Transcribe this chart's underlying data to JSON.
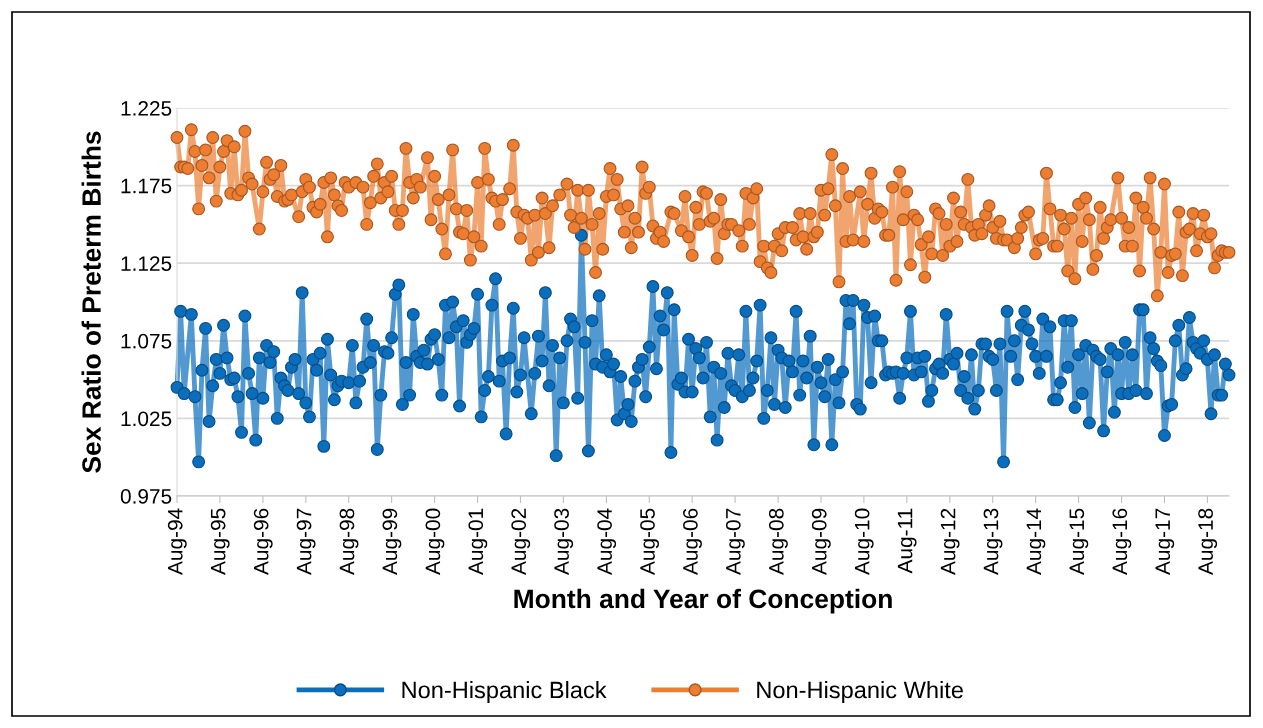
{
  "chart_data": {
    "type": "line",
    "xlabel": "Month and Year of Conception",
    "ylabel": "Sex Ratio of Preterm Births",
    "xlim": [
      "1994-08",
      "2019-02"
    ],
    "ylim": [
      0.975,
      1.225
    ],
    "yticks": [
      0.975,
      1.025,
      1.075,
      1.125,
      1.175,
      1.225
    ],
    "xticks": [
      {
        "value": "1994-08",
        "label": "Aug-94"
      },
      {
        "value": "1995-08",
        "label": "Aug-95"
      },
      {
        "value": "1996-08",
        "label": "Aug-96"
      },
      {
        "value": "1997-08",
        "label": "Aug-97"
      },
      {
        "value": "1998-08",
        "label": "Aug-98"
      },
      {
        "value": "1999-08",
        "label": "Aug-99"
      },
      {
        "value": "2000-08",
        "label": "Aug-00"
      },
      {
        "value": "2001-08",
        "label": "Aug-01"
      },
      {
        "value": "2002-08",
        "label": "Aug-02"
      },
      {
        "value": "2003-08",
        "label": "Aug-03"
      },
      {
        "value": "2004-08",
        "label": "Aug-04"
      },
      {
        "value": "2005-08",
        "label": "Aug-05"
      },
      {
        "value": "2006-08",
        "label": "Aug-06"
      },
      {
        "value": "2007-08",
        "label": "Aug-07"
      },
      {
        "value": "2008-08",
        "label": "Aug-08"
      },
      {
        "value": "2009-08",
        "label": "Aug-09"
      },
      {
        "value": "2010-08",
        "label": "Aug-10"
      },
      {
        "value": "2011-08",
        "label": "Aug-11"
      },
      {
        "value": "2012-08",
        "label": "Aug-12"
      },
      {
        "value": "2013-08",
        "label": "Aug-13"
      },
      {
        "value": "2014-08",
        "label": "Aug-14"
      },
      {
        "value": "2015-08",
        "label": "Aug-15"
      },
      {
        "value": "2016-08",
        "label": "Aug-16"
      },
      {
        "value": "2017-08",
        "label": "Aug-17"
      },
      {
        "value": "2018-08",
        "label": "Aug-18"
      }
    ],
    "grid": "y",
    "legend": "bottom",
    "marker": "circle",
    "line_style": "solid",
    "series": [
      {
        "name": "Non-Hispanic Black",
        "color": "#0a6ebd",
        "x": [
          "1994-08",
          "1994-09",
          "1994-10",
          "1994-12",
          "1995-01",
          "1995-02",
          "1995-03",
          "1995-04",
          "1995-05",
          "1995-06",
          "1995-07",
          "1995-08",
          "1995-09",
          "1995-10",
          "1995-11",
          "1995-12",
          "1996-01",
          "1996-02",
          "1996-03",
          "1996-04",
          "1996-05",
          "1996-06",
          "1996-07",
          "1996-08",
          "1996-09",
          "1996-10",
          "1996-11",
          "1996-12",
          "1997-01",
          "1997-02",
          "1997-03",
          "1997-04",
          "1997-05",
          "1997-06",
          "1997-07",
          "1997-08",
          "1997-09",
          "1997-10",
          "1997-11",
          "1997-12",
          "1998-01",
          "1998-02",
          "1998-03",
          "1998-04",
          "1998-05",
          "1998-06",
          "1998-08",
          "1998-09",
          "1998-10",
          "1998-11",
          "1998-12",
          "1999-01",
          "1999-02",
          "1999-03",
          "1999-04",
          "1999-05",
          "1999-06",
          "1999-07",
          "1999-08",
          "1999-09",
          "1999-10",
          "1999-11",
          "1999-12",
          "2000-01",
          "2000-02",
          "2000-03",
          "2000-04",
          "2000-05",
          "2000-06",
          "2000-07",
          "2000-08",
          "2000-09",
          "2000-10",
          "2000-11",
          "2000-12",
          "2001-01",
          "2001-02",
          "2001-03",
          "2001-04",
          "2001-05",
          "2001-06",
          "2001-07",
          "2001-08",
          "2001-09",
          "2001-10",
          "2001-11",
          "2001-12",
          "2002-01",
          "2002-02",
          "2002-03",
          "2002-04",
          "2002-05",
          "2002-06",
          "2002-07",
          "2002-08",
          "2002-09",
          "2002-11",
          "2002-12",
          "2003-01",
          "2003-02",
          "2003-03",
          "2003-04",
          "2003-05",
          "2003-06",
          "2003-07",
          "2003-08",
          "2003-09",
          "2003-10",
          "2003-11",
          "2003-12",
          "2004-01",
          "2004-02",
          "2004-03",
          "2004-04",
          "2004-05",
          "2004-06",
          "2004-07",
          "2004-08",
          "2004-09",
          "2004-10",
          "2004-11",
          "2004-12",
          "2005-01",
          "2005-02",
          "2005-03",
          "2005-04",
          "2005-05",
          "2005-06",
          "2005-07",
          "2005-08",
          "2005-09",
          "2005-10",
          "2005-11",
          "2005-12",
          "2006-01",
          "2006-02",
          "2006-03",
          "2006-04",
          "2006-05",
          "2006-06",
          "2006-07",
          "2006-08",
          "2006-09",
          "2006-10",
          "2006-11",
          "2006-12",
          "2007-01",
          "2007-02",
          "2007-03",
          "2007-04",
          "2007-05",
          "2007-06",
          "2007-07",
          "2007-08",
          "2007-09",
          "2007-10",
          "2007-11",
          "2007-12",
          "2008-01",
          "2008-02",
          "2008-03",
          "2008-04",
          "2008-05",
          "2008-06",
          "2008-07",
          "2008-08",
          "2008-09",
          "2008-10",
          "2008-11",
          "2008-12",
          "2009-01",
          "2009-02",
          "2009-03",
          "2009-04",
          "2009-05",
          "2009-06",
          "2009-07",
          "2009-08",
          "2009-09",
          "2009-10",
          "2009-11",
          "2009-12",
          "2010-01",
          "2010-02",
          "2010-03",
          "2010-04",
          "2010-05",
          "2010-06",
          "2010-07",
          "2010-08",
          "2010-09",
          "2010-10",
          "2010-11",
          "2010-12",
          "2011-01",
          "2011-02",
          "2011-03",
          "2011-04",
          "2011-05",
          "2011-06",
          "2011-07",
          "2011-08",
          "2011-09",
          "2011-10",
          "2011-11",
          "2011-12",
          "2012-01",
          "2012-02",
          "2012-03",
          "2012-04",
          "2012-05",
          "2012-06",
          "2012-07",
          "2012-08",
          "2012-09",
          "2012-10",
          "2012-11",
          "2012-12",
          "2013-01",
          "2013-02",
          "2013-03",
          "2013-04",
          "2013-05",
          "2013-06",
          "2013-07",
          "2013-08",
          "2013-09",
          "2013-10",
          "2013-11",
          "2013-12",
          "2014-01",
          "2014-02",
          "2014-03",
          "2014-04",
          "2014-05",
          "2014-06",
          "2014-07",
          "2014-08",
          "2014-09",
          "2014-10",
          "2014-11",
          "2014-12",
          "2015-01",
          "2015-02",
          "2015-03",
          "2015-04",
          "2015-05",
          "2015-06",
          "2015-07",
          "2015-08",
          "2015-09",
          "2015-10",
          "2015-11",
          "2015-12",
          "2016-01",
          "2016-02",
          "2016-03",
          "2016-04",
          "2016-05",
          "2016-06",
          "2016-07",
          "2016-08",
          "2016-09",
          "2016-10",
          "2016-11",
          "2016-12",
          "2017-01",
          "2017-02",
          "2017-03",
          "2017-04",
          "2017-05",
          "2017-06",
          "2017-07",
          "2017-08",
          "2017-09",
          "2017-10",
          "2017-11",
          "2017-12",
          "2018-01",
          "2018-02",
          "2018-03",
          "2018-04",
          "2018-05",
          "2018-06",
          "2018-07",
          "2018-08",
          "2018-09",
          "2018-10",
          "2018-11",
          "2018-12",
          "2019-01",
          "2019-02"
        ],
        "values": [
          1.045,
          1.094,
          1.041,
          1.092,
          1.039,
          0.997,
          1.056,
          1.083,
          1.023,
          1.046,
          1.063,
          1.054,
          1.085,
          1.064,
          1.05,
          1.051,
          1.039,
          1.016,
          1.091,
          1.054,
          1.041,
          1.011,
          1.064,
          1.038,
          1.072,
          1.061,
          1.068,
          1.025,
          1.051,
          1.046,
          1.043,
          1.058,
          1.063,
          1.041,
          1.106,
          1.035,
          1.026,
          1.063,
          1.056,
          1.067,
          1.007,
          1.076,
          1.053,
          1.037,
          1.046,
          1.049,
          1.048,
          1.072,
          1.035,
          1.049,
          1.058,
          1.089,
          1.061,
          1.072,
          1.005,
          1.04,
          1.068,
          1.067,
          1.077,
          1.105,
          1.111,
          1.034,
          1.061,
          1.04,
          1.092,
          1.065,
          1.061,
          1.069,
          1.06,
          1.076,
          1.079,
          1.063,
          1.04,
          1.098,
          1.077,
          1.1,
          1.084,
          1.033,
          1.088,
          1.074,
          1.079,
          1.083,
          1.105,
          1.026,
          1.043,
          1.052,
          1.098,
          1.115,
          1.049,
          1.062,
          1.015,
          1.064,
          1.096,
          1.042,
          1.053,
          1.077,
          1.028,
          1.054,
          1.078,
          1.062,
          1.106,
          1.046,
          1.072,
          1.001,
          1.064,
          1.035,
          1.075,
          1.089,
          1.084,
          1.038,
          1.143,
          1.074,
          1.004,
          1.088,
          1.06,
          1.104,
          1.058,
          1.066,
          1.055,
          1.06,
          1.024,
          1.052,
          1.028,
          1.034,
          1.023,
          1.049,
          1.058,
          1.063,
          1.039,
          1.071,
          1.11,
          1.057,
          1.091,
          1.082,
          1.106,
          1.003,
          1.095,
          1.047,
          1.051,
          1.042,
          1.076,
          1.042,
          1.07,
          1.064,
          1.051,
          1.074,
          1.026,
          1.058,
          1.011,
          1.054,
          1.032,
          1.067,
          1.046,
          1.043,
          1.066,
          1.039,
          1.094,
          1.043,
          1.051,
          1.062,
          1.098,
          1.025,
          1.043,
          1.077,
          1.034,
          1.069,
          1.064,
          1.032,
          1.062,
          1.055,
          1.094,
          1.04,
          1.062,
          1.051,
          1.078,
          1.008,
          1.058,
          1.048,
          1.039,
          1.063,
          1.008,
          1.05,
          1.035,
          1.055,
          1.101,
          1.086,
          1.101,
          1.034,
          1.031,
          1.098,
          1.09,
          1.048,
          1.091,
          1.075,
          1.075,
          1.053,
          1.055,
          1.054,
          1.055,
          1.038,
          1.054,
          1.064,
          1.094,
          1.053,
          1.064,
          1.055,
          1.065,
          1.036,
          1.043,
          1.057,
          1.06,
          1.054,
          1.092,
          1.063,
          1.06,
          1.067,
          1.043,
          1.052,
          1.038,
          1.066,
          1.031,
          1.043,
          1.073,
          1.073,
          1.065,
          1.063,
          1.043,
          1.073,
          0.997,
          1.094,
          1.065,
          1.075,
          1.05,
          1.085,
          1.094,
          1.082,
          1.073,
          1.065,
          1.054,
          1.089,
          1.065,
          1.084,
          1.037,
          1.037,
          1.048,
          1.088,
          1.058,
          1.088,
          1.032,
          1.066,
          1.041,
          1.072,
          1.022,
          1.069,
          1.065,
          1.063,
          1.017,
          1.055,
          1.07,
          1.029,
          1.066,
          1.041,
          1.074,
          1.041,
          1.066,
          1.043,
          1.095,
          1.095,
          1.041,
          1.077,
          1.07,
          1.062,
          1.059,
          1.014,
          1.033,
          1.034,
          1.075,
          1.085,
          1.053,
          1.057,
          1.09,
          1.074,
          1.07,
          1.067,
          1.075,
          1.063,
          1.028,
          1.066,
          1.04,
          1.04,
          1.06,
          1.053
        ]
      },
      {
        "name": "Non-Hispanic White",
        "color": "#ed7d31",
        "x": [
          "1994-08",
          "1994-09",
          "1994-10",
          "1994-11",
          "1994-12",
          "1995-01",
          "1995-02",
          "1995-03",
          "1995-04",
          "1995-05",
          "1995-06",
          "1995-07",
          "1995-08",
          "1995-09",
          "1995-10",
          "1995-11",
          "1995-12",
          "1996-01",
          "1996-02",
          "1996-03",
          "1996-04",
          "1996-05",
          "1996-07",
          "1996-08",
          "1996-09",
          "1996-10",
          "1996-11",
          "1996-12",
          "1997-01",
          "1997-02",
          "1997-03",
          "1997-04",
          "1997-06",
          "1997-07",
          "1997-08",
          "1997-09",
          "1997-10",
          "1997-11",
          "1997-12",
          "1998-01",
          "1998-02",
          "1998-03",
          "1998-04",
          "1998-05",
          "1998-06",
          "1998-07",
          "1998-08",
          "1998-10",
          "1998-12",
          "1999-01",
          "1999-02",
          "1999-03",
          "1999-04",
          "1999-05",
          "1999-06",
          "1999-07",
          "1999-08",
          "1999-09",
          "1999-10",
          "1999-11",
          "1999-12",
          "2000-01",
          "2000-02",
          "2000-03",
          "2000-04",
          "2000-06",
          "2000-07",
          "2000-08",
          "2000-09",
          "2000-10",
          "2000-11",
          "2000-12",
          "2001-01",
          "2001-02",
          "2001-03",
          "2001-04",
          "2001-05",
          "2001-06",
          "2001-07",
          "2001-08",
          "2001-09",
          "2001-10",
          "2001-11",
          "2001-12",
          "2002-01",
          "2002-02",
          "2002-03",
          "2002-05",
          "2002-06",
          "2002-07",
          "2002-08",
          "2002-09",
          "2002-10",
          "2002-11",
          "2002-12",
          "2003-01",
          "2003-02",
          "2003-03",
          "2003-04",
          "2003-05",
          "2003-07",
          "2003-09",
          "2003-10",
          "2003-11",
          "2003-12",
          "2004-01",
          "2004-02",
          "2004-03",
          "2004-04",
          "2004-05",
          "2004-06",
          "2004-07",
          "2004-08",
          "2004-09",
          "2004-10",
          "2004-11",
          "2004-12",
          "2005-01",
          "2005-02",
          "2005-03",
          "2005-04",
          "2005-05",
          "2005-06",
          "2005-07",
          "2005-08",
          "2005-09",
          "2005-10",
          "2005-11",
          "2005-12",
          "2006-02",
          "2006-03",
          "2006-05",
          "2006-06",
          "2006-07",
          "2006-08",
          "2006-09",
          "2006-10",
          "2006-11",
          "2006-12",
          "2007-01",
          "2007-02",
          "2007-03",
          "2007-04",
          "2007-05",
          "2007-06",
          "2007-07",
          "2007-09",
          "2007-10",
          "2007-11",
          "2007-12",
          "2008-01",
          "2008-02",
          "2008-03",
          "2008-04",
          "2008-05",
          "2008-06",
          "2008-07",
          "2008-08",
          "2008-09",
          "2008-10",
          "2008-12",
          "2009-01",
          "2009-02",
          "2009-03",
          "2009-04",
          "2009-05",
          "2009-06",
          "2009-07",
          "2009-08",
          "2009-09",
          "2009-10",
          "2009-11",
          "2009-12",
          "2010-01",
          "2010-02",
          "2010-03",
          "2010-04",
          "2010-05",
          "2010-07",
          "2010-08",
          "2010-09",
          "2010-10",
          "2010-11",
          "2010-12",
          "2011-01",
          "2011-02",
          "2011-03",
          "2011-04",
          "2011-05",
          "2011-06",
          "2011-07",
          "2011-08",
          "2011-09",
          "2011-10",
          "2011-11",
          "2011-12",
          "2012-01",
          "2012-02",
          "2012-03",
          "2012-04",
          "2012-05",
          "2012-06",
          "2012-07",
          "2012-08",
          "2012-09",
          "2012-10",
          "2012-11",
          "2012-12",
          "2013-01",
          "2013-02",
          "2013-03",
          "2013-04",
          "2013-05",
          "2013-06",
          "2013-07",
          "2013-08",
          "2013-09",
          "2013-10",
          "2013-11",
          "2013-12",
          "2014-02",
          "2014-03",
          "2014-04",
          "2014-05",
          "2014-06",
          "2014-08",
          "2014-09",
          "2014-10",
          "2014-11",
          "2014-12",
          "2015-01",
          "2015-02",
          "2015-03",
          "2015-04",
          "2015-05",
          "2015-06",
          "2015-07",
          "2015-08",
          "2015-09",
          "2015-10",
          "2015-11",
          "2015-12",
          "2016-01",
          "2016-02",
          "2016-03",
          "2016-04",
          "2016-05",
          "2016-07",
          "2016-08",
          "2016-09",
          "2016-10",
          "2016-11",
          "2016-12",
          "2017-01",
          "2017-02",
          "2017-03",
          "2017-04",
          "2017-05",
          "2017-06",
          "2017-07",
          "2017-08",
          "2017-09",
          "2017-10",
          "2017-11",
          "2017-12",
          "2018-01",
          "2018-02",
          "2018-03",
          "2018-04",
          "2018-05",
          "2018-06",
          "2018-07",
          "2018-08",
          "2018-09",
          "2018-10",
          "2018-11",
          "2018-12",
          "2019-01",
          "2019-02"
        ],
        "values": [
          1.206,
          1.187,
          1.187,
          1.186,
          1.211,
          1.197,
          1.16,
          1.188,
          1.198,
          1.18,
          1.206,
          1.165,
          1.187,
          1.197,
          1.204,
          1.17,
          1.2,
          1.169,
          1.172,
          1.21,
          1.18,
          1.176,
          1.147,
          1.171,
          1.19,
          1.179,
          1.182,
          1.168,
          1.188,
          1.165,
          1.166,
          1.169,
          1.155,
          1.171,
          1.179,
          1.174,
          1.161,
          1.158,
          1.163,
          1.177,
          1.142,
          1.18,
          1.169,
          1.162,
          1.159,
          1.177,
          1.174,
          1.177,
          1.174,
          1.15,
          1.164,
          1.181,
          1.189,
          1.167,
          1.177,
          1.171,
          1.181,
          1.159,
          1.15,
          1.159,
          1.199,
          1.177,
          1.167,
          1.179,
          1.174,
          1.193,
          1.153,
          1.181,
          1.166,
          1.147,
          1.131,
          1.169,
          1.198,
          1.16,
          1.145,
          1.144,
          1.159,
          1.127,
          1.142,
          1.177,
          1.136,
          1.199,
          1.179,
          1.167,
          1.165,
          1.15,
          1.166,
          1.173,
          1.201,
          1.158,
          1.141,
          1.156,
          1.154,
          1.127,
          1.156,
          1.132,
          1.167,
          1.157,
          1.135,
          1.162,
          1.169,
          1.176,
          1.156,
          1.148,
          1.172,
          1.154,
          1.134,
          1.172,
          1.15,
          1.119,
          1.157,
          1.134,
          1.168,
          1.186,
          1.169,
          1.179,
          1.16,
          1.145,
          1.162,
          1.135,
          1.154,
          1.145,
          1.187,
          1.17,
          1.174,
          1.149,
          1.141,
          1.145,
          1.139,
          1.158,
          1.157,
          1.146,
          1.168,
          1.142,
          1.13,
          1.161,
          1.15,
          1.171,
          1.17,
          1.152,
          1.154,
          1.128,
          1.166,
          1.144,
          1.15,
          1.15,
          1.146,
          1.136,
          1.17,
          1.15,
          1.167,
          1.173,
          1.126,
          1.136,
          1.122,
          1.119,
          1.136,
          1.144,
          1.133,
          1.148,
          1.148,
          1.14,
          1.157,
          1.142,
          1.134,
          1.157,
          1.142,
          1.145,
          1.172,
          1.156,
          1.173,
          1.195,
          1.162,
          1.113,
          1.186,
          1.139,
          1.168,
          1.14,
          1.171,
          1.139,
          1.163,
          1.183,
          1.154,
          1.16,
          1.158,
          1.143,
          1.143,
          1.174,
          1.114,
          1.184,
          1.153,
          1.171,
          1.124,
          1.156,
          1.153,
          1.137,
          1.116,
          1.142,
          1.131,
          1.16,
          1.157,
          1.13,
          1.15,
          1.136,
          1.167,
          1.139,
          1.158,
          1.15,
          1.179,
          1.148,
          1.143,
          1.15,
          1.144,
          1.156,
          1.162,
          1.148,
          1.141,
          1.152,
          1.14,
          1.14,
          1.135,
          1.141,
          1.148,
          1.156,
          1.158,
          1.131,
          1.14,
          1.141,
          1.183,
          1.16,
          1.136,
          1.136,
          1.156,
          1.147,
          1.12,
          1.154,
          1.115,
          1.163,
          1.139,
          1.167,
          1.153,
          1.121,
          1.13,
          1.161,
          1.141,
          1.148,
          1.153,
          1.18,
          1.154,
          1.136,
          1.148,
          1.136,
          1.167,
          1.12,
          1.161,
          1.154,
          1.18,
          1.147,
          1.104,
          1.132,
          1.176,
          1.119,
          1.13,
          1.131,
          1.158,
          1.117,
          1.145,
          1.147,
          1.157,
          1.133,
          1.144,
          1.156,
          1.142,
          1.144,
          1.122,
          1.13,
          1.133,
          1.132,
          1.132
        ]
      }
    ]
  }
}
